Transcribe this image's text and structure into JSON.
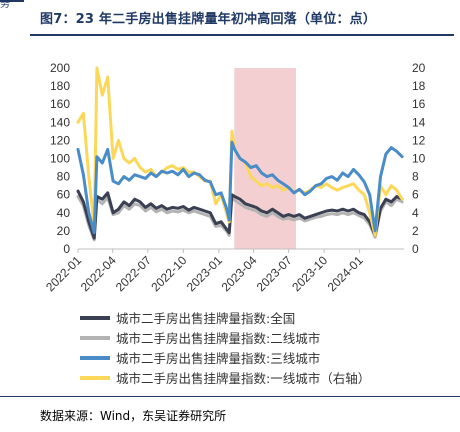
{
  "header": {
    "corner_glyph": "务",
    "title": "图7：23 年二手房出售挂牌量年初冲高回落（单位：点）"
  },
  "footer": {
    "source": "数据来源：Wind，东吴证券研究所"
  },
  "chart_data": {
    "type": "line",
    "x_ticks": [
      "2022-01",
      "2022-04",
      "2022-07",
      "2022-10",
      "2023-01",
      "2023-04",
      "2023-07",
      "2023-10",
      "2024-01"
    ],
    "x_range": [
      "2022-01-01",
      "2024-04-25"
    ],
    "ylim_left": [
      0,
      200
    ],
    "yticks_left": [
      0,
      20,
      40,
      60,
      80,
      100,
      120,
      140,
      160,
      180,
      200
    ],
    "ylim_right": [
      0,
      20
    ],
    "yticks_right": [
      0,
      2,
      4,
      6,
      8,
      10,
      12,
      14,
      16,
      18,
      20
    ],
    "highlight": {
      "start": "2023-02-10",
      "end": "2023-07-20",
      "color": "#f4cfd2"
    },
    "series": [
      {
        "name": "城市二手房出售挂牌量指数:全国",
        "color": "#3a4052",
        "axis": "left",
        "x": [
          "2022-01-01",
          "2022-01-15",
          "2022-01-29",
          "2022-02-12",
          "2022-02-19",
          "2022-03-05",
          "2022-03-19",
          "2022-04-02",
          "2022-04-16",
          "2022-04-30",
          "2022-05-14",
          "2022-05-28",
          "2022-06-11",
          "2022-06-25",
          "2022-07-09",
          "2022-07-23",
          "2022-08-06",
          "2022-08-20",
          "2022-09-03",
          "2022-09-17",
          "2022-10-01",
          "2022-10-15",
          "2022-10-29",
          "2022-11-12",
          "2022-11-26",
          "2022-12-10",
          "2022-12-24",
          "2023-01-07",
          "2023-01-21",
          "2023-01-28",
          "2023-02-04",
          "2023-02-11",
          "2023-02-25",
          "2023-03-11",
          "2023-03-25",
          "2023-04-08",
          "2023-04-22",
          "2023-05-06",
          "2023-05-20",
          "2023-06-03",
          "2023-06-17",
          "2023-07-01",
          "2023-07-15",
          "2023-07-29",
          "2023-08-12",
          "2023-08-26",
          "2023-09-09",
          "2023-09-23",
          "2023-10-07",
          "2023-10-21",
          "2023-11-04",
          "2023-11-18",
          "2023-12-02",
          "2023-12-16",
          "2023-12-30",
          "2024-01-13",
          "2024-01-27",
          "2024-02-10",
          "2024-02-24",
          "2024-03-09",
          "2024-03-23",
          "2024-04-06",
          "2024-04-20"
        ],
        "values": [
          64,
          52,
          30,
          12,
          58,
          55,
          62,
          40,
          44,
          52,
          48,
          55,
          52,
          46,
          50,
          45,
          48,
          44,
          46,
          45,
          47,
          43,
          46,
          44,
          42,
          40,
          28,
          30,
          22,
          18,
          60,
          58,
          55,
          50,
          48,
          46,
          42,
          40,
          44,
          40,
          36,
          38,
          36,
          38,
          34,
          36,
          38,
          40,
          42,
          43,
          42,
          44,
          42,
          44,
          40,
          38,
          30,
          15,
          45,
          55,
          52,
          58,
          55
        ]
      },
      {
        "name": "城市二手房出售挂牌量指数:二线城市",
        "color": "#b3b3b3",
        "axis": "left",
        "x": [
          "2022-01-01",
          "2022-01-15",
          "2022-01-29",
          "2022-02-12",
          "2022-02-19",
          "2022-03-05",
          "2022-03-19",
          "2022-04-02",
          "2022-04-16",
          "2022-04-30",
          "2022-05-14",
          "2022-05-28",
          "2022-06-11",
          "2022-06-25",
          "2022-07-09",
          "2022-07-23",
          "2022-08-06",
          "2022-08-20",
          "2022-09-03",
          "2022-09-17",
          "2022-10-01",
          "2022-10-15",
          "2022-10-29",
          "2022-11-12",
          "2022-11-26",
          "2022-12-10",
          "2022-12-24",
          "2023-01-07",
          "2023-01-21",
          "2023-01-28",
          "2023-02-04",
          "2023-02-11",
          "2023-02-25",
          "2023-03-11",
          "2023-03-25",
          "2023-04-08",
          "2023-04-22",
          "2023-05-06",
          "2023-05-20",
          "2023-06-03",
          "2023-06-17",
          "2023-07-01",
          "2023-07-15",
          "2023-07-29",
          "2023-08-12",
          "2023-08-26",
          "2023-09-09",
          "2023-09-23",
          "2023-10-07",
          "2023-10-21",
          "2023-11-04",
          "2023-11-18",
          "2023-12-02",
          "2023-12-16",
          "2023-12-30",
          "2024-01-13",
          "2024-01-27",
          "2024-02-10",
          "2024-02-24",
          "2024-03-09",
          "2024-03-23",
          "2024-04-06",
          "2024-04-20"
        ],
        "values": [
          58,
          48,
          26,
          10,
          55,
          50,
          57,
          38,
          40,
          48,
          44,
          50,
          48,
          42,
          46,
          41,
          44,
          40,
          42,
          41,
          43,
          40,
          42,
          40,
          38,
          36,
          25,
          26,
          20,
          15,
          56,
          54,
          50,
          46,
          44,
          42,
          38,
          36,
          40,
          36,
          33,
          34,
          32,
          34,
          31,
          33,
          35,
          36,
          38,
          39,
          38,
          40,
          38,
          40,
          37,
          34,
          27,
          13,
          42,
          52,
          48,
          55,
          52
        ]
      },
      {
        "name": "城市二手房出售挂牌量指数:三线城市",
        "color": "#4a8cc8",
        "axis": "left",
        "x": [
          "2022-01-01",
          "2022-01-15",
          "2022-01-29",
          "2022-02-12",
          "2022-02-19",
          "2022-03-05",
          "2022-03-19",
          "2022-04-02",
          "2022-04-16",
          "2022-04-30",
          "2022-05-14",
          "2022-05-28",
          "2022-06-11",
          "2022-06-25",
          "2022-07-09",
          "2022-07-23",
          "2022-08-06",
          "2022-08-20",
          "2022-09-03",
          "2022-09-17",
          "2022-10-01",
          "2022-10-15",
          "2022-10-29",
          "2022-11-12",
          "2022-11-26",
          "2022-12-10",
          "2022-12-24",
          "2023-01-07",
          "2023-01-21",
          "2023-01-28",
          "2023-02-04",
          "2023-02-11",
          "2023-02-25",
          "2023-03-11",
          "2023-03-25",
          "2023-04-08",
          "2023-04-22",
          "2023-05-06",
          "2023-05-20",
          "2023-06-03",
          "2023-06-17",
          "2023-07-01",
          "2023-07-15",
          "2023-07-29",
          "2023-08-12",
          "2023-08-26",
          "2023-09-09",
          "2023-09-23",
          "2023-10-07",
          "2023-10-21",
          "2023-11-04",
          "2023-11-18",
          "2023-12-02",
          "2023-12-16",
          "2023-12-30",
          "2024-01-13",
          "2024-01-27",
          "2024-02-10",
          "2024-02-24",
          "2024-03-09",
          "2024-03-23",
          "2024-04-06",
          "2024-04-20"
        ],
        "values": [
          110,
          82,
          40,
          18,
          102,
          95,
          110,
          75,
          72,
          80,
          76,
          82,
          80,
          78,
          84,
          80,
          86,
          84,
          86,
          82,
          88,
          80,
          84,
          82,
          76,
          74,
          60,
          62,
          45,
          32,
          118,
          110,
          100,
          96,
          90,
          92,
          84,
          80,
          82,
          76,
          72,
          68,
          62,
          66,
          60,
          64,
          70,
          72,
          78,
          80,
          76,
          84,
          80,
          88,
          82,
          74,
          60,
          20,
          80,
          105,
          112,
          108,
          102
        ]
      },
      {
        "name": "城市二手房出售挂牌量指数:一线城市（右轴）",
        "color": "#fcd85a",
        "axis": "right",
        "x": [
          "2022-01-01",
          "2022-01-15",
          "2022-01-29",
          "2022-02-12",
          "2022-02-19",
          "2022-03-05",
          "2022-03-19",
          "2022-04-02",
          "2022-04-16",
          "2022-04-30",
          "2022-05-14",
          "2022-05-28",
          "2022-06-11",
          "2022-06-25",
          "2022-07-09",
          "2022-07-23",
          "2022-08-06",
          "2022-08-20",
          "2022-09-03",
          "2022-09-17",
          "2022-10-01",
          "2022-10-15",
          "2022-10-29",
          "2022-11-12",
          "2022-11-26",
          "2022-12-10",
          "2022-12-24",
          "2023-01-07",
          "2023-01-21",
          "2023-01-28",
          "2023-02-04",
          "2023-02-11",
          "2023-02-25",
          "2023-03-11",
          "2023-03-25",
          "2023-04-08",
          "2023-04-22",
          "2023-05-06",
          "2023-05-20",
          "2023-06-03",
          "2023-06-17",
          "2023-07-01",
          "2023-07-15",
          "2023-07-29",
          "2023-08-12",
          "2023-08-26",
          "2023-09-09",
          "2023-09-23",
          "2023-10-07",
          "2023-10-21",
          "2023-11-04",
          "2023-11-18",
          "2023-12-02",
          "2023-12-16",
          "2023-12-30",
          "2024-01-13",
          "2024-01-27",
          "2024-02-10",
          "2024-02-24",
          "2024-03-09",
          "2024-03-23",
          "2024-04-06",
          "2024-04-20"
        ],
        "values": [
          14,
          15,
          8,
          2.5,
          20,
          17,
          19,
          10,
          12,
          10,
          9.5,
          10,
          9,
          8.5,
          8.8,
          8,
          8.5,
          9,
          9.2,
          8.8,
          9,
          8.5,
          8.5,
          8,
          7.5,
          7.5,
          5,
          6,
          4,
          3,
          13,
          11,
          10,
          9.5,
          8,
          7.5,
          7,
          7.2,
          6.8,
          7,
          6.5,
          6.8,
          6.3,
          6.5,
          6.2,
          6.5,
          7,
          6.8,
          7.2,
          6.8,
          6.5,
          6.8,
          7,
          7.2,
          6.5,
          6,
          4,
          1.5,
          7,
          6,
          7,
          6.5,
          5.5
        ]
      }
    ]
  }
}
